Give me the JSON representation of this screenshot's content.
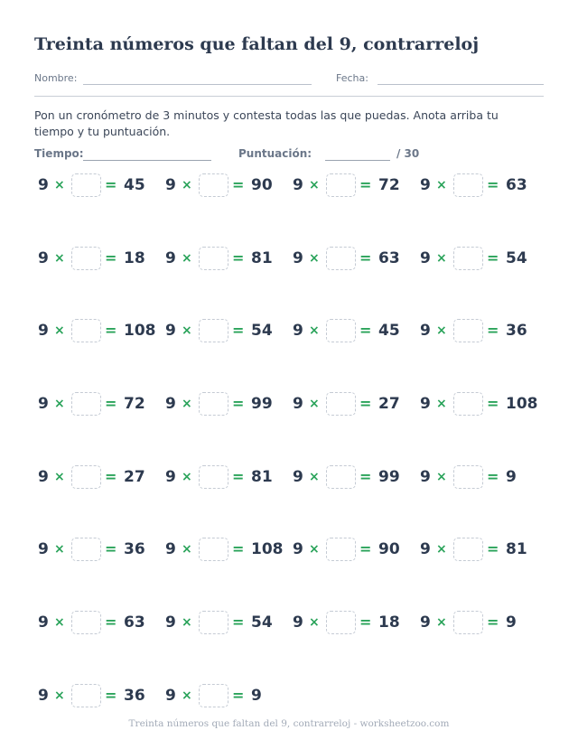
{
  "title": "Treinta números que faltan del 9, contrarreloj",
  "meta": {
    "name_label": "Nombre:",
    "date_label": "Fecha:"
  },
  "instructions": "Pon un cronómetro de 3 minutos y contesta todas las que puedas. Anota arriba tu tiempo y tu puntuación.",
  "score": {
    "time_label": "Tiempo:",
    "score_label": "Puntuación:",
    "total": "/ 30"
  },
  "operator": "×",
  "equals": "=",
  "problems": [
    {
      "factor": "9",
      "product": "45"
    },
    {
      "factor": "9",
      "product": "90"
    },
    {
      "factor": "9",
      "product": "72"
    },
    {
      "factor": "9",
      "product": "63"
    },
    {
      "factor": "9",
      "product": "18"
    },
    {
      "factor": "9",
      "product": "81"
    },
    {
      "factor": "9",
      "product": "63"
    },
    {
      "factor": "9",
      "product": "54"
    },
    {
      "factor": "9",
      "product": "108"
    },
    {
      "factor": "9",
      "product": "54"
    },
    {
      "factor": "9",
      "product": "45"
    },
    {
      "factor": "9",
      "product": "36"
    },
    {
      "factor": "9",
      "product": "72"
    },
    {
      "factor": "9",
      "product": "99"
    },
    {
      "factor": "9",
      "product": "27"
    },
    {
      "factor": "9",
      "product": "108"
    },
    {
      "factor": "9",
      "product": "27"
    },
    {
      "factor": "9",
      "product": "81"
    },
    {
      "factor": "9",
      "product": "99"
    },
    {
      "factor": "9",
      "product": "9"
    },
    {
      "factor": "9",
      "product": "36"
    },
    {
      "factor": "9",
      "product": "108"
    },
    {
      "factor": "9",
      "product": "90"
    },
    {
      "factor": "9",
      "product": "81"
    },
    {
      "factor": "9",
      "product": "63"
    },
    {
      "factor": "9",
      "product": "54"
    },
    {
      "factor": "9",
      "product": "18"
    },
    {
      "factor": "9",
      "product": "9"
    },
    {
      "factor": "9",
      "product": "36"
    },
    {
      "factor": "9",
      "product": "9"
    }
  ],
  "footer": "Treinta números que faltan del 9, contrarreloj - worksheetzoo.com",
  "colors": {
    "operator": "#2aa35a",
    "text": "#2d3a4f",
    "box_border": "#c5cbd4"
  }
}
